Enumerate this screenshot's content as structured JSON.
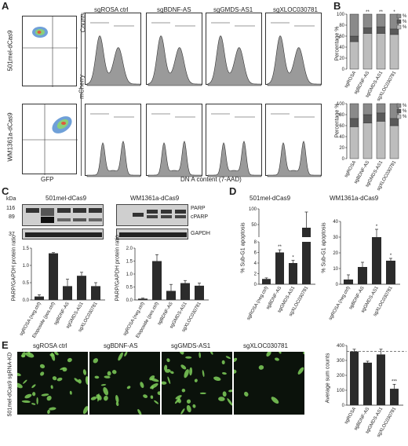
{
  "panel_letters": [
    "A",
    "B",
    "C",
    "D",
    "E"
  ],
  "A": {
    "row_labels": [
      "501mel-dCas9",
      "WM1361a-dCas9"
    ],
    "scatter_ylabel": "mCherry",
    "scatter_xlabel": "GFP",
    "hist_titles": [
      "sgROSA ctrl",
      "sgBDNF-AS",
      "sgGMDS-AS1",
      "sgXLOC030781"
    ],
    "hist_ylabel": "Counts",
    "hist_xlabel": "DN A content (7-AAD)"
  },
  "B": {
    "ylabel": "Percentage %",
    "legend": [
      "% G2",
      "% S",
      "% G1"
    ],
    "categories": [
      "sgROSA",
      "sgBDNF-AS",
      "sgGMDS-AS1",
      "sgXLOC030781"
    ],
    "top_sig": [
      "",
      "**",
      "**",
      "*"
    ],
    "ticks": [
      "0",
      "20",
      "40",
      "60",
      "80",
      "100"
    ]
  },
  "C": {
    "kda_label": "kDa",
    "kda_marks": [
      "116",
      "89",
      "37"
    ],
    "lines": [
      "501mel-dCas9",
      "WM1361a-dCas9"
    ],
    "band_labels": [
      "PARP",
      "cPARP",
      "GAPDH"
    ],
    "ylabel": "PARP/GAPDH protein ratio",
    "left_categories": [
      "sgROSA (neg.ctrl)",
      "Etoposide (pos.ctrl)",
      "sgBDNF-AS",
      "sgGMDS-AS1",
      "sgXLOC030781"
    ],
    "right_categories": [
      "sgROSA (neg.ctrl)",
      "Etoposide (pos.ctrl)",
      "sgBDNF-AS",
      "sgGMDS-AS1",
      "sgXLOC030781"
    ],
    "left_ticks": [
      "0.0",
      "0.5",
      "1.0",
      "1.5"
    ],
    "right_ticks": [
      "0.0",
      "0.5",
      "1.0",
      "1.5",
      "2.0"
    ]
  },
  "D": {
    "titles": [
      "501mel-dCas9",
      "WM1361a-dCas9"
    ],
    "ylabel": "% Sub-G1 apoptosis",
    "categories": [
      "sgROSA (neg.ctrl)",
      "sgBDNF-AS",
      "sgGMDS-AS1",
      "sgXLOC030781"
    ],
    "left_sig": [
      "",
      "**",
      "*",
      ""
    ],
    "right_sig": [
      "",
      "",
      "*",
      "*"
    ],
    "left_ticks_low": [
      "0",
      "2",
      "4",
      "6",
      "8"
    ],
    "left_ticks_high": [
      "50",
      "100"
    ],
    "right_ticks": [
      "0",
      "10",
      "20",
      "30",
      "40"
    ]
  },
  "E": {
    "row_label": "501mel-dCas9 sgRNA-KD",
    "image_titles": [
      "sgROSA ctrl",
      "sgBDNF-AS",
      "sgGMDS-AS1",
      "sgXLOC030781"
    ],
    "ylabel": "Average sum counts",
    "categories": [
      "sgROSA",
      "sgBDNF-AS",
      "sgGMDS-AS1",
      "sgXLOC030781"
    ],
    "sig": [
      "",
      "",
      "",
      "***"
    ],
    "ticks": [
      "0",
      "100",
      "200",
      "300",
      "400"
    ]
  },
  "chart_data": [
    {
      "type": "bar",
      "panel": "B-top",
      "stacked": true,
      "categories": [
        "sgROSA",
        "sgBDNF-AS",
        "sgGMDS-AS1",
        "sgXLOC030781"
      ],
      "series": [
        {
          "name": "% G1",
          "values": [
            50,
            65,
            65,
            63
          ]
        },
        {
          "name": "% S",
          "values": [
            10,
            10,
            12,
            10
          ]
        },
        {
          "name": "% G2",
          "values": [
            40,
            25,
            23,
            27
          ]
        }
      ],
      "ylim": [
        0,
        100
      ],
      "ylabel": "Percentage %"
    },
    {
      "type": "bar",
      "panel": "B-bottom",
      "stacked": true,
      "categories": [
        "sgROSA",
        "sgBDNF-AS",
        "sgGMDS-AS1",
        "sgXLOC030781"
      ],
      "series": [
        {
          "name": "% G1",
          "values": [
            58,
            65,
            68,
            60
          ]
        },
        {
          "name": "% S",
          "values": [
            15,
            15,
            15,
            13
          ]
        },
        {
          "name": "% G2",
          "values": [
            27,
            20,
            17,
            27
          ]
        }
      ],
      "ylim": [
        0,
        100
      ],
      "ylabel": "Percentage %"
    },
    {
      "type": "bar",
      "panel": "C-left",
      "categories": [
        "sgROSA (neg.ctrl)",
        "Etoposide (pos.ctrl)",
        "sgBDNF-AS",
        "sgGMDS-AS1",
        "sgXLOC030781"
      ],
      "values": [
        0.1,
        1.35,
        0.4,
        0.7,
        0.4
      ],
      "errors": [
        0.05,
        0.02,
        0.2,
        0.1,
        0.1
      ],
      "ylim": [
        0,
        1.5
      ],
      "ylabel": "PARP/GAPDH protein ratio"
    },
    {
      "type": "bar",
      "panel": "C-right",
      "categories": [
        "sgROSA (neg.ctrl)",
        "Etoposide (pos.ctrl)",
        "sgBDNF-AS",
        "sgGMDS-AS1",
        "sgXLOC030781"
      ],
      "values": [
        0.05,
        1.5,
        0.35,
        0.65,
        0.55
      ],
      "errors": [
        0.02,
        0.25,
        0.25,
        0.1,
        0.1
      ],
      "ylim": [
        0,
        2.0
      ],
      "ylabel": "PARP/GAPDH protein ratio"
    },
    {
      "type": "bar",
      "panel": "D-left",
      "categories": [
        "sgROSA (neg.ctrl)",
        "sgBDNF-AS",
        "sgGMDS-AS1",
        "sgXLOC030781"
      ],
      "values": [
        1,
        6,
        4,
        40
      ],
      "errors": [
        0.2,
        0.5,
        0.5,
        50
      ],
      "ylim": [
        0,
        100
      ],
      "ylabel": "% Sub-G1 apoptosis",
      "broken_axis": [
        8,
        10
      ]
    },
    {
      "type": "bar",
      "panel": "D-right",
      "categories": [
        "sgROSA (neg.ctrl)",
        "sgBDNF-AS",
        "sgGMDS-AS1",
        "sgXLOC030781"
      ],
      "values": [
        3,
        11,
        30,
        15
      ],
      "errors": [
        3,
        3,
        5,
        1.5
      ],
      "ylim": [
        0,
        40
      ],
      "ylabel": "% Sub-G1 apoptosis"
    },
    {
      "type": "bar",
      "panel": "E",
      "categories": [
        "sgROSA",
        "sgBDNF-AS",
        "sgGMDS-AS1",
        "sgXLOC030781"
      ],
      "values": [
        360,
        285,
        340,
        110
      ],
      "errors": [
        15,
        10,
        35,
        30
      ],
      "ylim": [
        0,
        400
      ],
      "ylabel": "Average sum counts",
      "reference_line": 360
    }
  ],
  "colors": {
    "bar_dark": "#2b2b2b",
    "g1": "#bdbdbd",
    "s": "#5a5a5a",
    "g2": "#8a8a8a",
    "hist_fill": "#9a9a9a",
    "cells": "#7fcf5a"
  }
}
